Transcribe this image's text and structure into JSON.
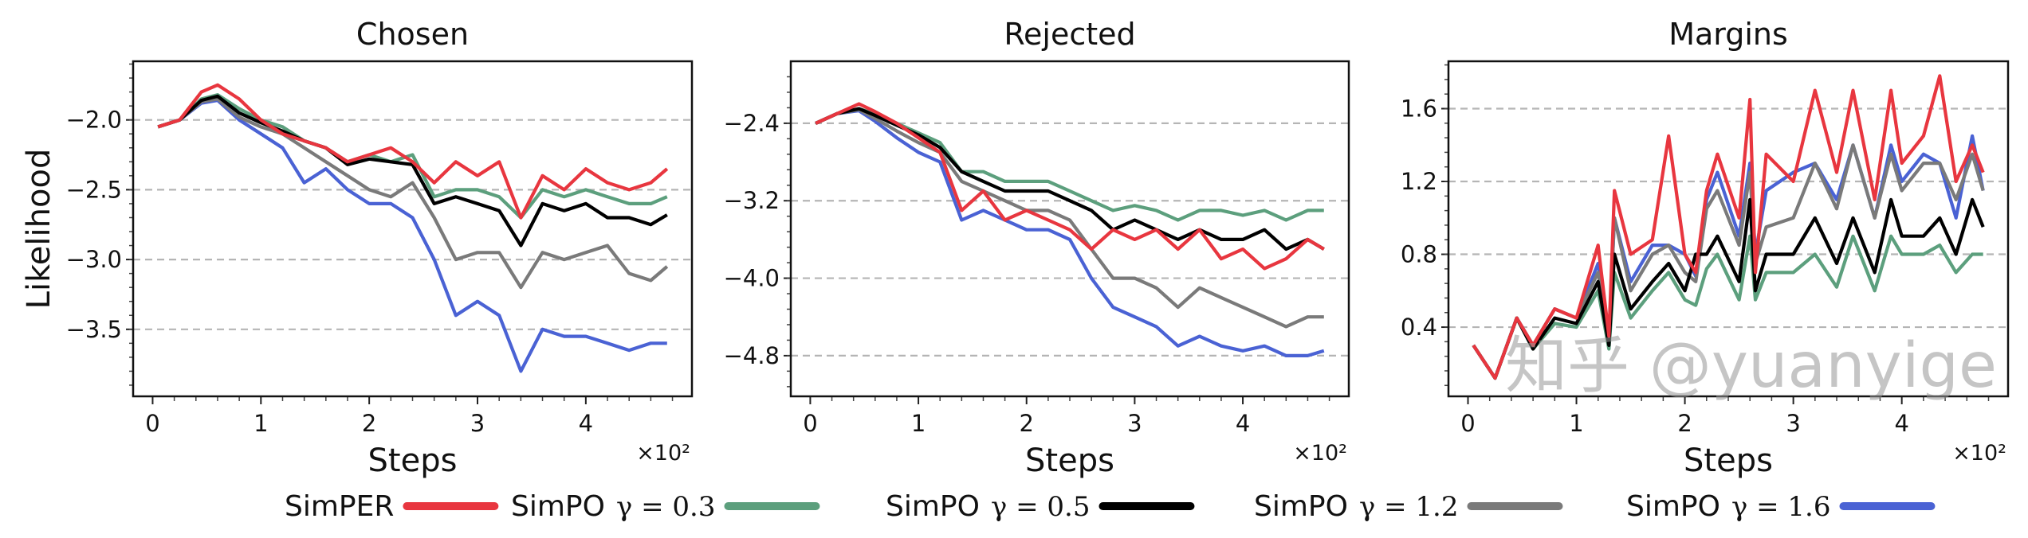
{
  "colors": {
    "SimPER": "#e8363f",
    "SimPO_0.3": "#5c9f7d",
    "SimPO_0.5": "#000000",
    "SimPO_1.2": "#7a7a7a",
    "SimPO_1.6": "#4a62d4"
  },
  "legend": {
    "placement": "bottom",
    "items": [
      {
        "label": "SimPER",
        "gamma": "",
        "color_key": "SimPER"
      },
      {
        "label": "SimPO",
        "gamma": "γ = 0.3",
        "color_key": "SimPO_0.3"
      },
      {
        "label": "SimPO",
        "gamma": "γ = 0.5",
        "color_key": "SimPO_0.5"
      },
      {
        "label": "SimPO",
        "gamma": "γ = 1.2",
        "color_key": "SimPO_1.2"
      },
      {
        "label": "SimPO",
        "gamma": "γ = 1.6",
        "color_key": "SimPO_1.6"
      }
    ]
  },
  "watermark": "知乎 @yuanyige",
  "chart_data": [
    {
      "type": "line",
      "title": "Chosen",
      "xlabel": "Steps",
      "x_multiplier": "×10²",
      "ylabel": "Likelihood",
      "xlim": [
        -18,
        498
      ],
      "ylim": [
        -3.98,
        -1.58
      ],
      "xticks": [
        0,
        100,
        200,
        300,
        400
      ],
      "xtick_labels": [
        "0",
        "1",
        "2",
        "3",
        "4"
      ],
      "yticks": [
        -2.0,
        -2.5,
        -3.0,
        -3.5
      ],
      "ytick_labels": [
        "−2.0",
        "−2.5",
        "−3.0",
        "−3.5"
      ],
      "grid": "y-dashed",
      "x": [
        5,
        25,
        45,
        60,
        80,
        100,
        120,
        140,
        160,
        180,
        200,
        220,
        240,
        260,
        280,
        300,
        320,
        340,
        360,
        380,
        400,
        420,
        440,
        460,
        475
      ],
      "series": [
        {
          "key": "SimPER",
          "values": [
            -2.05,
            -2.0,
            -1.8,
            -1.75,
            -1.85,
            -2.0,
            -2.1,
            -2.15,
            -2.2,
            -2.3,
            -2.25,
            -2.2,
            -2.3,
            -2.45,
            -2.3,
            -2.4,
            -2.3,
            -2.7,
            -2.4,
            -2.5,
            -2.35,
            -2.45,
            -2.5,
            -2.45,
            -2.35
          ]
        },
        {
          "key": "SimPO_0.3",
          "values": [
            -2.05,
            -2.0,
            -1.85,
            -1.82,
            -1.92,
            -2.0,
            -2.05,
            -2.15,
            -2.2,
            -2.3,
            -2.25,
            -2.3,
            -2.25,
            -2.55,
            -2.5,
            -2.5,
            -2.55,
            -2.7,
            -2.5,
            -2.55,
            -2.5,
            -2.55,
            -2.6,
            -2.6,
            -2.55
          ]
        },
        {
          "key": "SimPO_0.5",
          "values": [
            -2.05,
            -2.0,
            -1.86,
            -1.83,
            -1.95,
            -2.02,
            -2.08,
            -2.15,
            -2.2,
            -2.32,
            -2.28,
            -2.3,
            -2.32,
            -2.6,
            -2.55,
            -2.6,
            -2.65,
            -2.9,
            -2.6,
            -2.65,
            -2.6,
            -2.7,
            -2.7,
            -2.75,
            -2.68
          ]
        },
        {
          "key": "SimPO_1.2",
          "values": [
            -2.05,
            -2.0,
            -1.87,
            -1.85,
            -1.98,
            -2.05,
            -2.1,
            -2.2,
            -2.3,
            -2.4,
            -2.5,
            -2.55,
            -2.45,
            -2.7,
            -3.0,
            -2.95,
            -2.95,
            -3.2,
            -2.95,
            -3.0,
            -2.95,
            -2.9,
            -3.1,
            -3.15,
            -3.05
          ]
        },
        {
          "key": "SimPO_1.6",
          "values": [
            -2.05,
            -2.0,
            -1.88,
            -1.86,
            -2.0,
            -2.1,
            -2.2,
            -2.45,
            -2.35,
            -2.5,
            -2.6,
            -2.6,
            -2.7,
            -3.0,
            -3.4,
            -3.3,
            -3.4,
            -3.8,
            -3.5,
            -3.55,
            -3.55,
            -3.6,
            -3.65,
            -3.6,
            -3.6
          ]
        }
      ]
    },
    {
      "type": "line",
      "title": "Rejected",
      "xlabel": "Steps",
      "x_multiplier": "×10²",
      "ylabel": "",
      "xlim": [
        -18,
        498
      ],
      "ylim": [
        -5.22,
        -1.76
      ],
      "xticks": [
        0,
        100,
        200,
        300,
        400
      ],
      "xtick_labels": [
        "0",
        "1",
        "2",
        "3",
        "4"
      ],
      "yticks": [
        -2.4,
        -3.2,
        -4.0,
        -4.8
      ],
      "ytick_labels": [
        "−2.4",
        "−3.2",
        "−4.0",
        "−4.8"
      ],
      "grid": "y-dashed",
      "x": [
        5,
        25,
        45,
        60,
        80,
        100,
        120,
        140,
        160,
        180,
        200,
        220,
        240,
        260,
        280,
        300,
        320,
        340,
        360,
        380,
        400,
        420,
        440,
        460,
        475
      ],
      "series": [
        {
          "key": "SimPER",
          "values": [
            -2.4,
            -2.3,
            -2.2,
            -2.28,
            -2.4,
            -2.55,
            -2.7,
            -3.3,
            -3.1,
            -3.4,
            -3.3,
            -3.4,
            -3.5,
            -3.7,
            -3.5,
            -3.6,
            -3.5,
            -3.7,
            -3.5,
            -3.8,
            -3.7,
            -3.9,
            -3.8,
            -3.6,
            -3.7
          ]
        },
        {
          "key": "SimPO_0.3",
          "values": [
            -2.4,
            -2.3,
            -2.25,
            -2.3,
            -2.4,
            -2.5,
            -2.6,
            -2.9,
            -2.9,
            -3.0,
            -3.0,
            -3.0,
            -3.1,
            -3.2,
            -3.3,
            -3.25,
            -3.3,
            -3.4,
            -3.3,
            -3.3,
            -3.35,
            -3.3,
            -3.4,
            -3.3,
            -3.3
          ]
        },
        {
          "key": "SimPO_0.5",
          "values": [
            -2.4,
            -2.3,
            -2.25,
            -2.32,
            -2.42,
            -2.52,
            -2.65,
            -2.9,
            -3.0,
            -3.1,
            -3.1,
            -3.1,
            -3.2,
            -3.3,
            -3.5,
            -3.4,
            -3.5,
            -3.6,
            -3.5,
            -3.6,
            -3.6,
            -3.5,
            -3.7,
            -3.6,
            -3.7
          ]
        },
        {
          "key": "SimPO_1.2",
          "values": [
            -2.4,
            -2.3,
            -2.26,
            -2.35,
            -2.48,
            -2.6,
            -2.7,
            -3.0,
            -3.1,
            -3.2,
            -3.3,
            -3.3,
            -3.4,
            -3.7,
            -4.0,
            -4.0,
            -4.1,
            -4.3,
            -4.1,
            -4.2,
            -4.3,
            -4.4,
            -4.5,
            -4.4,
            -4.4
          ]
        },
        {
          "key": "SimPO_1.6",
          "values": [
            -2.4,
            -2.3,
            -2.27,
            -2.38,
            -2.55,
            -2.7,
            -2.8,
            -3.4,
            -3.3,
            -3.4,
            -3.5,
            -3.5,
            -3.6,
            -4.0,
            -4.3,
            -4.4,
            -4.5,
            -4.7,
            -4.6,
            -4.7,
            -4.75,
            -4.7,
            -4.8,
            -4.8,
            -4.75
          ]
        }
      ]
    },
    {
      "type": "line",
      "title": "Margins",
      "xlabel": "Steps",
      "x_multiplier": "×10²",
      "ylabel": "",
      "xlim": [
        -18,
        498
      ],
      "ylim": [
        0.02,
        1.86
      ],
      "xticks": [
        0,
        100,
        200,
        300,
        400
      ],
      "xtick_labels": [
        "0",
        "1",
        "2",
        "3",
        "4"
      ],
      "yticks": [
        1.6,
        1.2,
        0.8,
        0.4
      ],
      "ytick_labels": [
        "1.6",
        "1.2",
        "0.8",
        "0.4"
      ],
      "grid": "y-dashed",
      "x": [
        5,
        25,
        45,
        60,
        80,
        100,
        120,
        130,
        135,
        150,
        170,
        185,
        200,
        210,
        220,
        230,
        250,
        260,
        265,
        275,
        300,
        320,
        340,
        355,
        375,
        390,
        400,
        420,
        435,
        450,
        465,
        475
      ],
      "series": [
        {
          "key": "SimPER",
          "values": [
            0.3,
            0.12,
            0.45,
            0.3,
            0.5,
            0.45,
            0.85,
            0.35,
            1.15,
            0.8,
            0.88,
            1.45,
            0.8,
            0.7,
            1.15,
            1.35,
            1.0,
            1.65,
            0.7,
            1.35,
            1.2,
            1.7,
            1.25,
            1.7,
            1.1,
            1.7,
            1.3,
            1.45,
            1.78,
            1.2,
            1.4,
            1.25
          ]
        },
        {
          "key": "SimPO_0.3",
          "values": [
            0.3,
            0.12,
            0.45,
            0.28,
            0.42,
            0.4,
            0.6,
            0.28,
            0.7,
            0.45,
            0.6,
            0.7,
            0.55,
            0.52,
            0.72,
            0.8,
            0.55,
            0.9,
            0.55,
            0.7,
            0.7,
            0.8,
            0.62,
            0.9,
            0.6,
            0.9,
            0.8,
            0.8,
            0.85,
            0.7,
            0.8,
            0.8
          ]
        },
        {
          "key": "SimPO_0.5",
          "values": [
            0.3,
            0.12,
            0.45,
            0.28,
            0.45,
            0.42,
            0.65,
            0.3,
            0.8,
            0.5,
            0.65,
            0.75,
            0.6,
            0.8,
            0.8,
            0.9,
            0.65,
            1.1,
            0.6,
            0.8,
            0.8,
            1.0,
            0.75,
            1.0,
            0.7,
            1.1,
            0.9,
            0.9,
            1.0,
            0.8,
            1.1,
            0.95
          ]
        },
        {
          "key": "SimPO_1.2",
          "values": [
            0.3,
            0.12,
            0.45,
            0.3,
            0.5,
            0.45,
            0.7,
            0.35,
            1.0,
            0.6,
            0.8,
            0.85,
            0.7,
            0.65,
            1.05,
            1.15,
            0.85,
            1.25,
            0.75,
            0.95,
            1.0,
            1.3,
            1.05,
            1.4,
            1.0,
            1.35,
            1.15,
            1.3,
            1.3,
            1.1,
            1.35,
            1.15
          ]
        },
        {
          "key": "SimPO_1.6",
          "values": [
            0.3,
            0.12,
            0.45,
            0.3,
            0.5,
            0.45,
            0.75,
            0.35,
            1.0,
            0.65,
            0.85,
            0.85,
            0.8,
            0.68,
            1.1,
            1.25,
            0.9,
            1.3,
            0.8,
            1.15,
            1.25,
            1.3,
            1.1,
            1.4,
            1.0,
            1.4,
            1.2,
            1.35,
            1.3,
            1.0,
            1.45,
            1.15
          ]
        }
      ]
    }
  ]
}
